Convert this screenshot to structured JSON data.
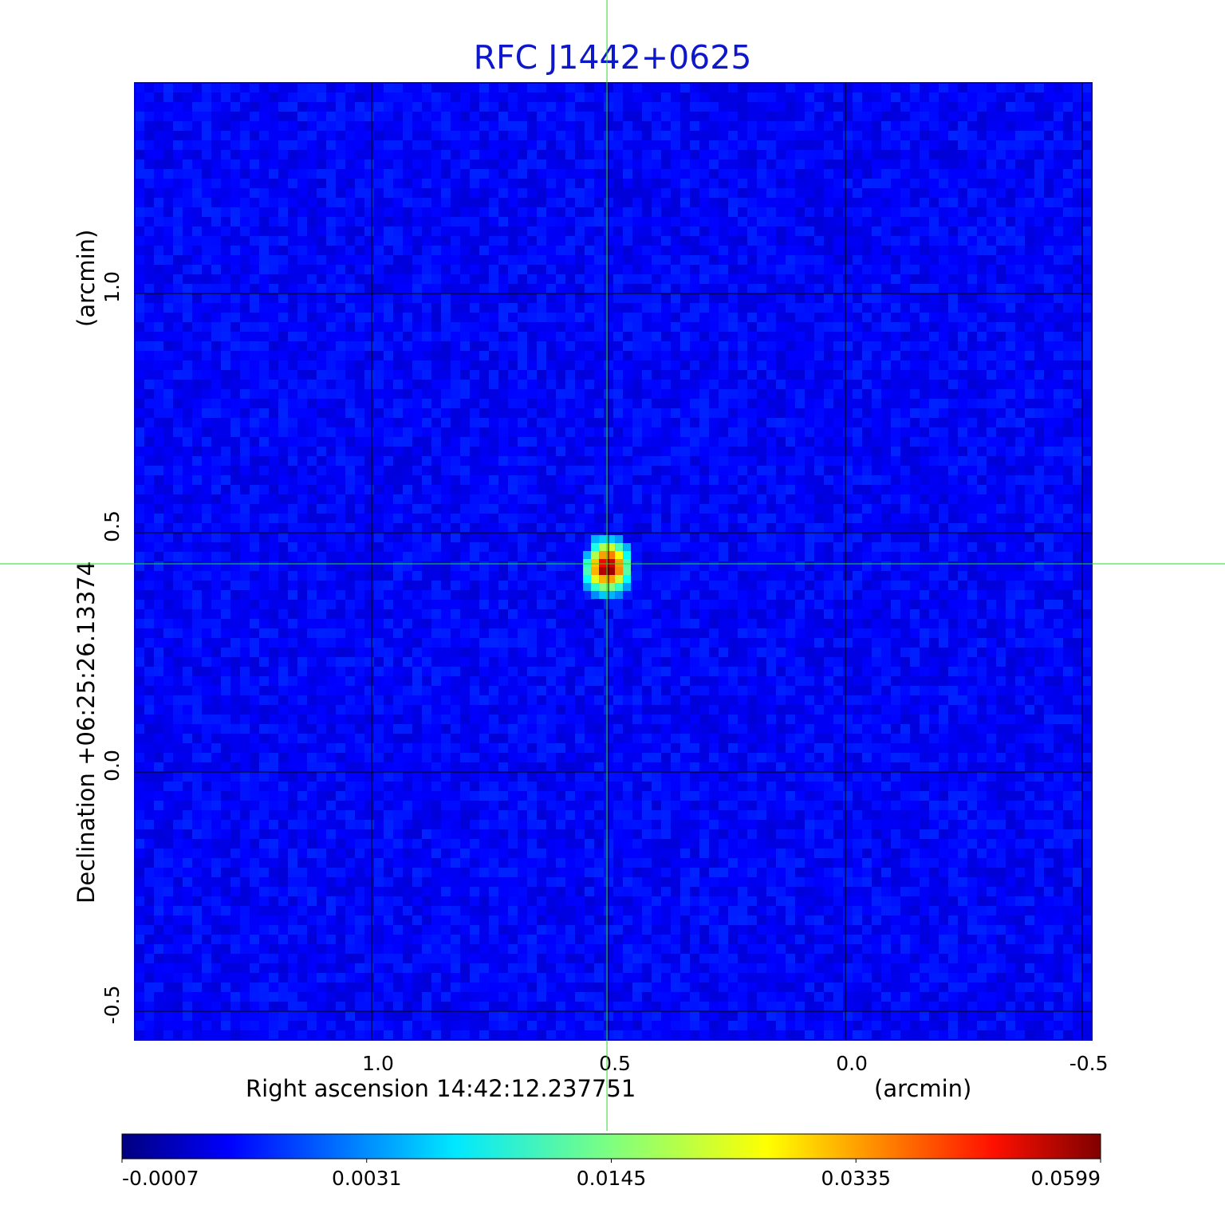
{
  "chart_data": {
    "type": "heatmap",
    "title": "RFC J1442+0625",
    "xlabel": "Right ascension  14:42:12.237751",
    "xunit": "(arcmin)",
    "ylabel": "Declination  +06:25:26.13374",
    "yunit": "(arcmin)",
    "xlim": [
      1.5,
      -0.52
    ],
    "ylim": [
      -0.56,
      1.44
    ],
    "x_ticks": [
      {
        "value": 1.0,
        "label": "1.0"
      },
      {
        "value": 0.5,
        "label": "0.5"
      },
      {
        "value": 0.0,
        "label": "0.0"
      },
      {
        "value": -0.5,
        "label": "-0.5"
      }
    ],
    "y_ticks": [
      {
        "value": 1.0,
        "label": "1.0"
      },
      {
        "value": 0.5,
        "label": "0.5"
      },
      {
        "value": 0.0,
        "label": "0.0"
      },
      {
        "value": -0.5,
        "label": "-0.5"
      }
    ],
    "grid": true,
    "crosshair": {
      "x": 0.5,
      "y": 0.435,
      "color": "#22dd22"
    },
    "source": {
      "x": 0.5,
      "y": 0.435,
      "peak": 0.0599
    },
    "colorbar": {
      "orientation": "horizontal",
      "colormap": "jet",
      "ticks": [
        "-0.0007",
        "0.0031",
        "0.0145",
        "0.0335",
        "0.0599"
      ]
    },
    "colors": {
      "title": "#0f18c8",
      "background_field": "#1a4ef0"
    }
  }
}
